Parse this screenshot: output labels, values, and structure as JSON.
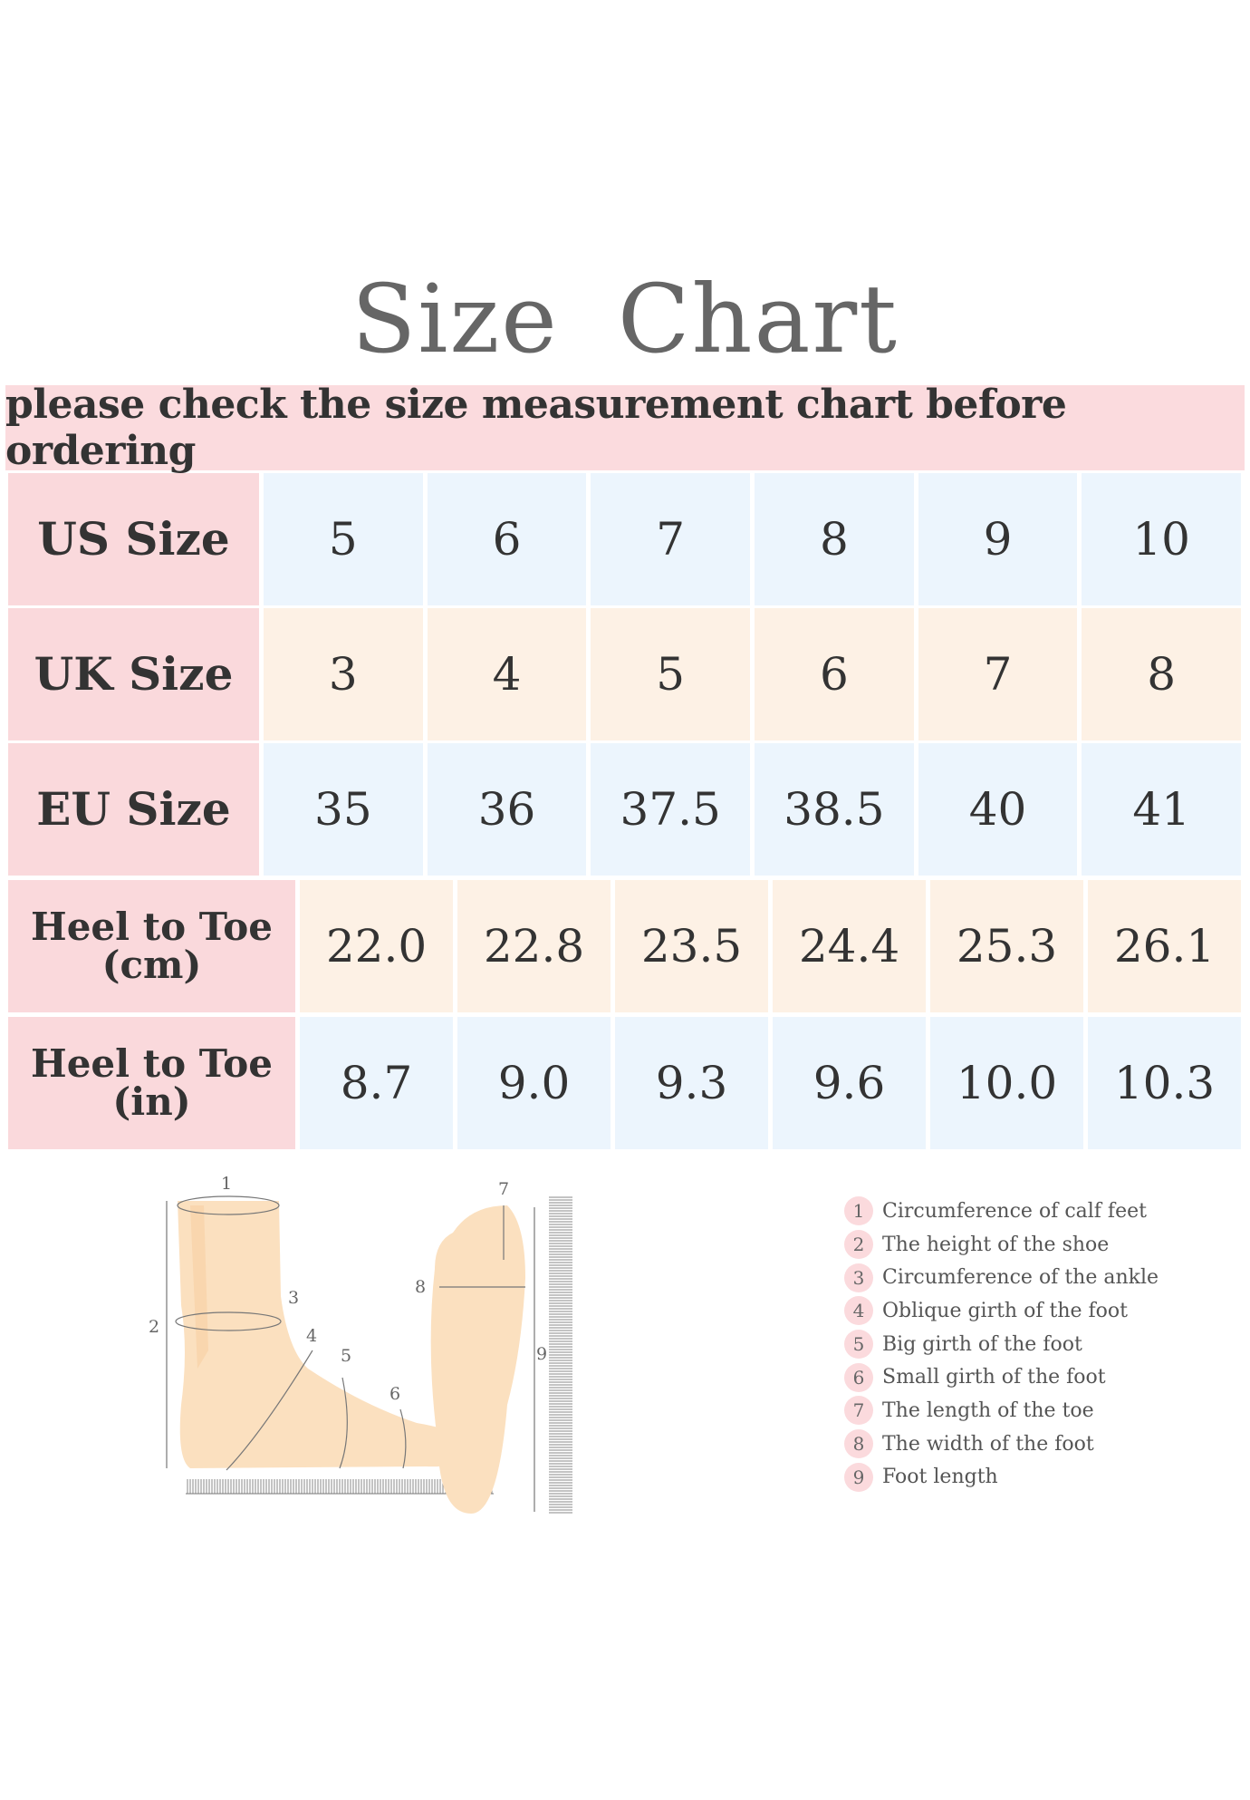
{
  "title": "Size  Chart",
  "banner": "please check the size measurement chart before ordering",
  "table": {
    "rows": [
      {
        "label": "US Size",
        "values": [
          "5",
          "6",
          "7",
          "8",
          "9",
          "10"
        ]
      },
      {
        "label": "UK Size",
        "values": [
          "3",
          "4",
          "5",
          "6",
          "7",
          "8"
        ]
      },
      {
        "label": "EU Size",
        "values": [
          "35",
          "36",
          "37.5",
          "38.5",
          "40",
          "41"
        ]
      },
      {
        "label": "Heel to Toe (cm)",
        "values": [
          "22.0",
          "22.8",
          "23.5",
          "24.4",
          "25.3",
          "26.1"
        ]
      },
      {
        "label": "Heel to Toe (in)",
        "values": [
          "8.7",
          "9.0",
          "9.3",
          "9.6",
          "10.0",
          "10.3"
        ]
      }
    ]
  },
  "diagram": {
    "markers": [
      "1",
      "2",
      "3",
      "4",
      "5",
      "6",
      "7",
      "8",
      "9"
    ]
  },
  "legend": [
    {
      "num": "1",
      "text": "Circumference of calf feet"
    },
    {
      "num": "2",
      "text": "The height of the shoe"
    },
    {
      "num": "3",
      "text": "Circumference of the ankle"
    },
    {
      "num": "4",
      "text": "Oblique girth of the foot"
    },
    {
      "num": "5",
      "text": "Big girth of the foot"
    },
    {
      "num": "6",
      "text": "Small girth of the foot"
    },
    {
      "num": "7",
      "text": "The length of the toe"
    },
    {
      "num": "8",
      "text": "The width of the foot"
    },
    {
      "num": "9",
      "text": "Foot length"
    }
  ],
  "colors": {
    "label_bg": "#fad9dc",
    "blue_row": "#ecf5fd",
    "peach_row": "#fdf1e5",
    "skin": "#fbe0bf"
  }
}
